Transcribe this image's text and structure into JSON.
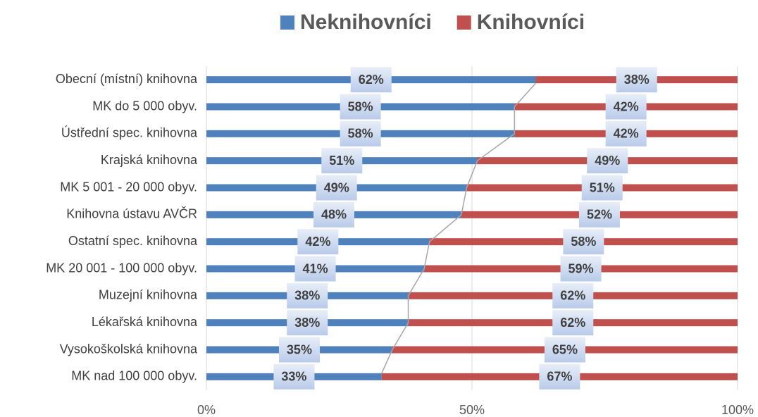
{
  "chart_data": {
    "type": "stacked_bar_100_horizontal",
    "categories": [
      "Obecní (místní) knihovna",
      "MK do 5 000 obyv.",
      "Ústřední spec. knihovna",
      "Krajská knihovna",
      "MK  5 001 - 20 000 obyv.",
      "Knihovna ústavu AVČR",
      "Ostatní spec. knihovna",
      "MK 20 001 - 100 000 obyv.",
      "Muzejní knihovna",
      "Lékařská knihovna",
      "Vysokoškolská knihovna",
      "MK nad 100 000 obyv."
    ],
    "series": [
      {
        "name": "Neknihovníci",
        "color": "#4f81bd",
        "values": [
          62,
          58,
          58,
          51,
          49,
          48,
          42,
          41,
          38,
          38,
          35,
          33
        ],
        "value_labels": [
          "62%",
          "58%",
          "58%",
          "51%",
          "49%",
          "48%",
          "42%",
          "41%",
          "38%",
          "38%",
          "35%",
          "33%"
        ]
      },
      {
        "name": "Knihovníci",
        "color": "#c0504d",
        "values": [
          38,
          42,
          42,
          49,
          51,
          52,
          58,
          59,
          62,
          62,
          65,
          67
        ],
        "value_labels": [
          "38%",
          "42%",
          "42%",
          "49%",
          "51%",
          "52%",
          "58%",
          "59%",
          "62%",
          "62%",
          "65%",
          "67%"
        ]
      }
    ],
    "xlim": [
      0,
      100
    ],
    "xticks": [
      {
        "value": 0,
        "label": "0%"
      },
      {
        "value": 50,
        "label": "50%"
      },
      {
        "value": 100,
        "label": "100%"
      }
    ],
    "grid": true,
    "series_lines": true,
    "legend": "top"
  }
}
